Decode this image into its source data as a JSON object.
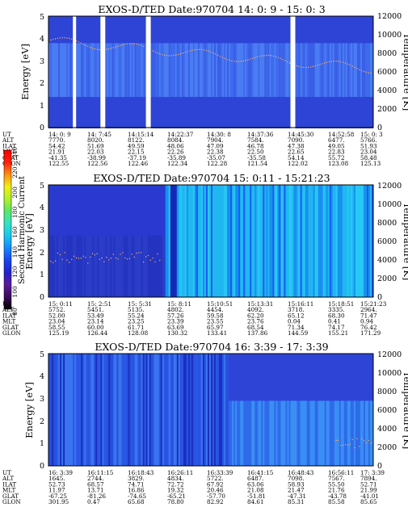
{
  "chart_data": [
    {
      "type": "heatmap",
      "title": "EXOS-D/TED   Date:970704  14: 0: 9 - 15: 0: 3",
      "ylabel": "Energy [eV]",
      "y2label": "Temperature [K]",
      "y_ticks": [
        "0",
        "1",
        "2",
        "3",
        "4",
        "5"
      ],
      "y2_ticks": [
        "0",
        "2000",
        "4000",
        "6000",
        "8000",
        "10000",
        "12000"
      ],
      "ylim": [
        0,
        5
      ],
      "y2lim": [
        0,
        12000
      ],
      "gaps": [
        [
          0.075,
          0.085
        ],
        [
          0.16,
          0.175
        ],
        [
          0.3,
          0.315
        ],
        [
          0.745,
          0.76
        ]
      ],
      "profile": "a",
      "table": {
        "row_labels": [
          "UT",
          "ALT",
          "ILAT",
          "MLT",
          "GLAT",
          "GLON"
        ],
        "columns": [
          [
            "14: 0: 9",
            "7770.",
            "54.42",
            "21.91",
            "-41.35",
            "122.55"
          ],
          [
            "14: 7:45",
            "8020.",
            "51.69",
            "22.03",
            "-38.99",
            "122.56"
          ],
          [
            "14:15:14",
            "8122.",
            "49.59",
            "22.15",
            "-37.19",
            "122.46"
          ],
          [
            "14:22:37",
            "8084.",
            "48.06",
            "22.26",
            "-35.89",
            "122.34"
          ],
          [
            "14:30: 8",
            "7904.",
            "47.09",
            "22.38",
            "-35.07",
            "122.28"
          ],
          [
            "14:37:36",
            "7584.",
            "46.78",
            "22.50",
            "-35.58",
            "121.54"
          ],
          [
            "14:45:30",
            "7090.",
            "47.38",
            "22.65",
            "54.14",
            "122.02"
          ],
          [
            "14:52:58",
            "6477.",
            "49.05",
            "22.83",
            "55.72",
            "123.08"
          ],
          [
            "15: 0: 3",
            "5766.",
            "51.93",
            "23.04",
            "58.48",
            "125.13"
          ]
        ]
      }
    },
    {
      "type": "heatmap",
      "title": "EXOS-D/TED   Date:970704  15: 0:11 - 15:21:23",
      "ylabel": "Energy [eV]",
      "y2label": "Temperature [K]",
      "y_ticks": [
        "0",
        "1",
        "2",
        "3",
        "4",
        "5"
      ],
      "y2_ticks": [
        "0",
        "2000",
        "4000",
        "6000",
        "8000",
        "10000",
        "12000"
      ],
      "ylim": [
        0,
        5
      ],
      "y2lim": [
        0,
        12000
      ],
      "gaps": [],
      "profile": "b",
      "table": {
        "row_labels": [
          "UT",
          "ALT",
          "ILAT",
          "MLT",
          "GLAT",
          "GLON"
        ],
        "columns": [
          [
            "15: 0:11",
            "5752.",
            "52.00",
            "23.04",
            "58.55",
            "125.19"
          ],
          [
            "15: 2:51",
            "5451.",
            "53.49",
            "23.14",
            "60.00",
            "126.44"
          ],
          [
            "15: 5:31",
            "5135.",
            "55.24",
            "23.25",
            "61.71",
            "128.08"
          ],
          [
            "15: 8:11",
            "4802.",
            "57.26",
            "23.39",
            "63.69",
            "130.32"
          ],
          [
            "15:10:51",
            "4454.",
            "59.58",
            "23.55",
            "65.97",
            "133.41"
          ],
          [
            "15:13:31",
            "4092.",
            "62.20",
            "23.76",
            "68.54",
            "137.86"
          ],
          [
            "15:16:11",
            "3718.",
            "65.12",
            "0.04",
            "71.34",
            "144.59"
          ],
          [
            "15:18:51",
            "3335.",
            "68.30",
            "0.41",
            "74.17",
            "155.21"
          ],
          [
            "15:21:23",
            "2964.",
            "71.47",
            "0.94",
            "76.42",
            "171.29"
          ]
        ]
      }
    },
    {
      "type": "heatmap",
      "title": "EXOS-D/TED   Date:970704  16: 3:39 - 17: 3:39",
      "ylabel": "Energy [eV]",
      "y2label": "Temperature [K]",
      "y_ticks": [
        "0",
        "1",
        "2",
        "3",
        "4",
        "5"
      ],
      "y2_ticks": [
        "0",
        "2000",
        "4000",
        "6000",
        "8000",
        "10000",
        "12000"
      ],
      "ylim": [
        0,
        5
      ],
      "y2lim": [
        0,
        12000
      ],
      "gaps": [],
      "profile": "c",
      "table": {
        "row_labels": [
          "UT",
          "ALT",
          "ILAT",
          "MLT",
          "GLAT",
          "GLON"
        ],
        "columns": [
          [
            "16: 3:39",
            "1645.",
            "52.73",
            "11.97",
            "-67.25",
            "301.95"
          ],
          [
            "16:11:15",
            "2744.",
            "68.57",
            "13.71",
            "-81.26",
            "0.47"
          ],
          [
            "16:18:43",
            "3829.",
            "74.71",
            "16.86",
            "-74.65",
            "65.68"
          ],
          [
            "16:26:11",
            "4834.",
            "72.72",
            "19.32",
            "-65.21",
            "78.80"
          ],
          [
            "16:33:39",
            "5722.",
            "67.92",
            "20.46",
            "-57.70",
            "82.92"
          ],
          [
            "16:41:15",
            "6487.",
            "63.06",
            "21.08",
            "-51.81",
            "84.61"
          ],
          [
            "16:48:43",
            "7098.",
            "58.93",
            "21.47",
            "-47.31",
            "85.31"
          ],
          [
            "16:56:11",
            "7567.",
            "55.50",
            "21.76",
            "-43.78",
            "85.58"
          ],
          [
            "17: 3:39",
            "7894.",
            "52.71",
            "21.99",
            "-41.01",
            "85.65"
          ]
        ]
      }
    }
  ],
  "colorbar": {
    "label": "Second Harmonic Current",
    "ticks": [
      "80",
      "100",
      "120",
      "140",
      "160",
      "180",
      "200",
      "220",
      "240"
    ],
    "colors": [
      "#000000",
      "#3a0a5a",
      "#5a1a9a",
      "#2222cc",
      "#1a44ee",
      "#1488ff",
      "#18c8ee",
      "#30e4c8",
      "#58e868",
      "#b0f028",
      "#f0f018",
      "#ff9010",
      "#ff2010",
      "#ff0000"
    ]
  }
}
